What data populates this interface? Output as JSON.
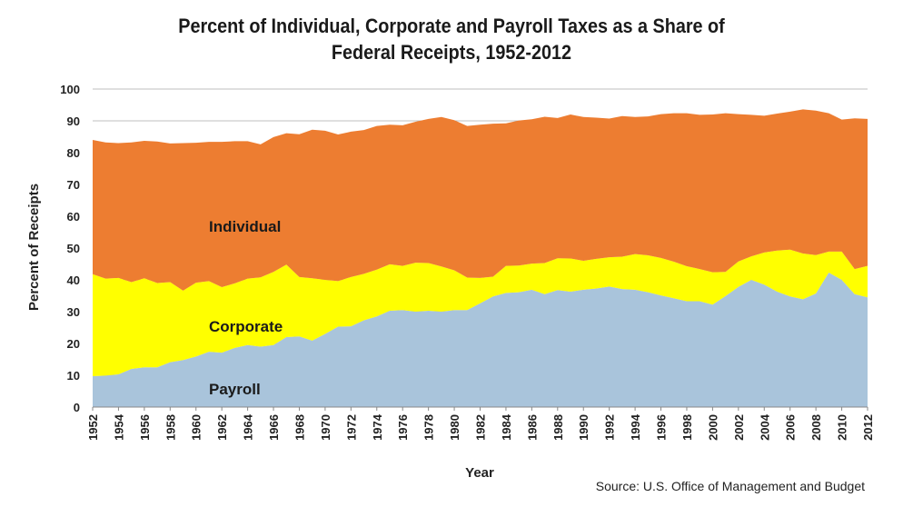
{
  "chart_data": {
    "type": "area",
    "title_line1": "Percent of Individual, Corporate and Payroll Taxes as a Share of",
    "title_line2": "Federal Receipts, 1952-2012",
    "xlabel": "Year",
    "ylabel": "Percent of Receipts",
    "source": "Source: U.S. Office of Management and Budget",
    "ylim": [
      0,
      100
    ],
    "yticks": [
      0,
      10,
      20,
      30,
      40,
      50,
      60,
      70,
      80,
      90,
      100
    ],
    "xticks": [
      "1952",
      "1954",
      "1956",
      "1958",
      "1960",
      "1962",
      "1964",
      "1966",
      "1968",
      "1970",
      "1972",
      "1974",
      "1976",
      "1978",
      "1980",
      "1982",
      "1984",
      "1986",
      "1988",
      "1990",
      "1992",
      "1994",
      "1996",
      "1998",
      "2000",
      "2002",
      "2004",
      "2006",
      "2008",
      "2010",
      "2012"
    ],
    "grid": true,
    "stacked": true,
    "x": [
      1952,
      1953,
      1954,
      1955,
      1956,
      1957,
      1958,
      1959,
      1960,
      1961,
      1962,
      1963,
      1964,
      1965,
      1966,
      1967,
      1968,
      1969,
      1970,
      1971,
      1972,
      1973,
      1974,
      1975,
      1976,
      1977,
      1978,
      1979,
      1980,
      1981,
      1982,
      1983,
      1984,
      1985,
      1986,
      1987,
      1988,
      1989,
      1990,
      1991,
      1992,
      1993,
      1994,
      1995,
      1996,
      1997,
      1998,
      1999,
      2000,
      2001,
      2002,
      2003,
      2004,
      2005,
      2006,
      2007,
      2008,
      2009,
      2010,
      2011,
      2012
    ],
    "series": [
      {
        "name": "Payroll",
        "color": "#a9c4db",
        "values": [
          9.7,
          9.9,
          10.3,
          12.0,
          12.5,
          12.5,
          14.1,
          14.8,
          15.9,
          17.4,
          17.1,
          18.6,
          19.5,
          19.0,
          19.5,
          22.0,
          22.2,
          20.9,
          23.0,
          25.3,
          25.4,
          27.3,
          28.5,
          30.3,
          30.5,
          30.0,
          30.3,
          30.0,
          30.5,
          30.5,
          32.6,
          34.8,
          35.9,
          36.1,
          36.9,
          35.5,
          36.8,
          36.3,
          36.9,
          37.3,
          37.9,
          37.1,
          36.9,
          36.1,
          35.1,
          34.2,
          33.3,
          33.3,
          32.2,
          34.9,
          37.8,
          40.0,
          38.5,
          36.3,
          34.8,
          33.9,
          35.7,
          42.3,
          40.0,
          35.5,
          34.5
        ]
      },
      {
        "name": "Corporate",
        "color": "#ffff00",
        "values": [
          32.1,
          30.5,
          30.3,
          27.3,
          28.0,
          26.5,
          25.2,
          21.8,
          23.2,
          22.2,
          20.6,
          20.3,
          20.9,
          21.8,
          23.0,
          22.8,
          18.7,
          19.6,
          17.0,
          14.3,
          15.5,
          14.6,
          14.7,
          14.6,
          13.9,
          15.4,
          15.0,
          14.2,
          12.5,
          10.2,
          8.0,
          6.2,
          8.5,
          8.4,
          8.2,
          9.8,
          10.0,
          10.4,
          9.1,
          9.3,
          9.2,
          10.2,
          11.2,
          11.6,
          11.8,
          11.5,
          11.0,
          10.1,
          10.2,
          7.6,
          8.0,
          7.4,
          10.1,
          12.9,
          14.7,
          14.4,
          12.1,
          6.6,
          8.9,
          7.9,
          9.9
        ]
      },
      {
        "name": "Individual",
        "color": "#ed7d31",
        "values": [
          42.2,
          42.8,
          42.4,
          43.9,
          43.2,
          44.5,
          43.6,
          46.4,
          44.0,
          43.8,
          45.7,
          44.7,
          43.2,
          41.8,
          42.4,
          41.3,
          44.9,
          46.7,
          46.9,
          46.1,
          45.7,
          45.2,
          45.2,
          43.9,
          44.2,
          44.3,
          45.3,
          47.0,
          47.2,
          47.7,
          48.2,
          48.1,
          44.8,
          45.6,
          45.4,
          46.0,
          44.1,
          45.3,
          45.2,
          44.4,
          43.6,
          44.2,
          43.1,
          43.7,
          45.2,
          46.7,
          48.1,
          48.5,
          49.6,
          49.9,
          46.3,
          44.5,
          43.0,
          43.1,
          43.4,
          45.3,
          45.4,
          43.5,
          41.5,
          47.4,
          46.2
        ]
      }
    ],
    "series_labels": {
      "individual": "Individual",
      "corporate": "Corporate",
      "payroll": "Payroll"
    }
  }
}
